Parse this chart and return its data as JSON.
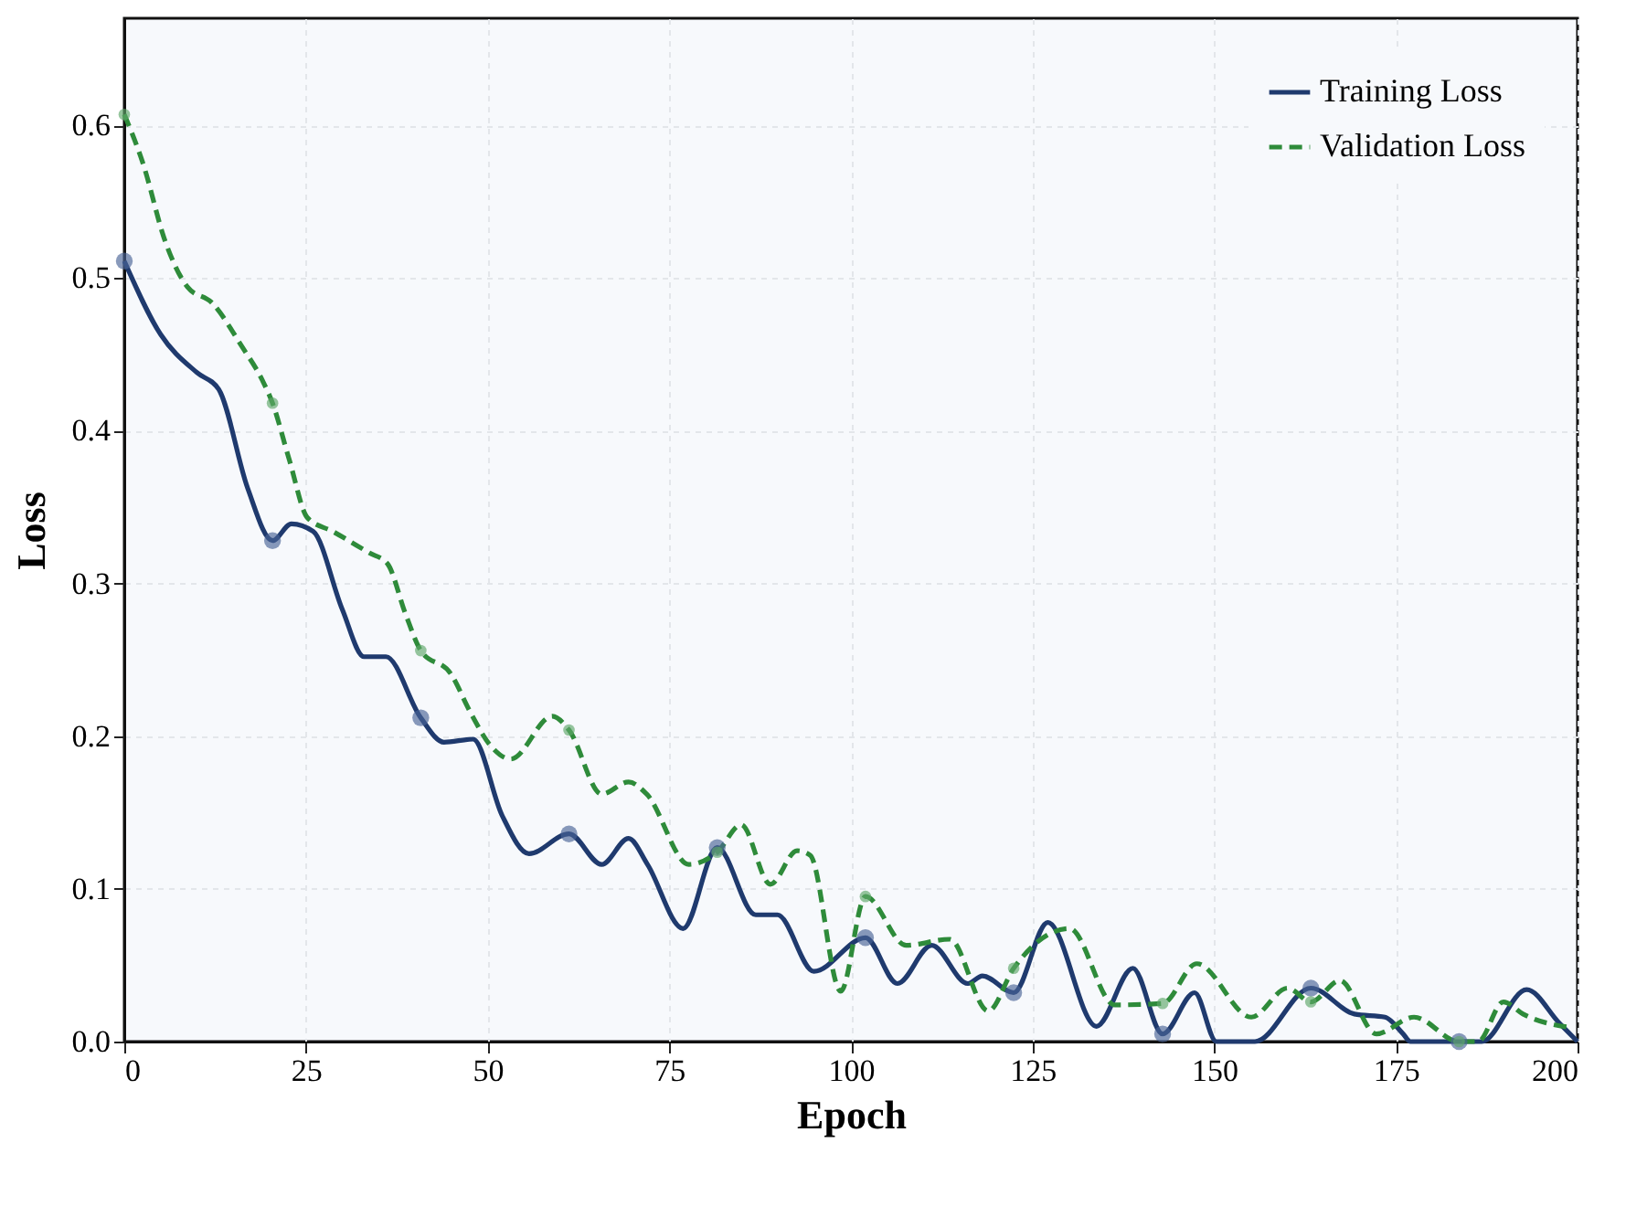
{
  "chart_data": {
    "type": "line",
    "xlabel": "Epoch",
    "ylabel": "Loss",
    "xlim": [
      0,
      200
    ],
    "ylim": [
      0,
      0.67
    ],
    "xticks": [
      0,
      25,
      50,
      75,
      100,
      125,
      150,
      175,
      200
    ],
    "yticks": [
      {
        "value": 0,
        "label": "0.0"
      },
      0.1,
      0.2,
      0.3,
      0.4,
      0.5,
      0.6
    ],
    "grid": true,
    "legend": "top right",
    "series": [
      {
        "name": "Training Loss",
        "color": "#1f3a6e",
        "line_style": "solid",
        "x": [
          0,
          5,
          10,
          13,
          17,
          20.4,
          23,
          26,
          30,
          33,
          36,
          40.8,
          44,
          48,
          52,
          55.7,
          61.2,
          65.7,
          69.4,
          72,
          76.9,
          81.6,
          86.9,
          89.9,
          94.9,
          102,
          106.4,
          111.1,
          116.1,
          118.1,
          122.4,
          127.1,
          133.8,
          138.8,
          142.9,
          147.3,
          150.3,
          155.6,
          163.3,
          169.3,
          173.5,
          176,
          177,
          183.7,
          186.8,
          193,
          197.5,
          200
        ],
        "values": [
          0.511,
          0.463,
          0.438,
          0.427,
          0.362,
          0.328,
          0.339,
          0.334,
          0.283,
          0.252,
          0.252,
          0.212,
          0.196,
          0.198,
          0.148,
          0.123,
          0.136,
          0.116,
          0.133,
          0.116,
          0.074,
          0.127,
          0.083,
          0.083,
          0.046,
          0.068,
          0.038,
          0.063,
          0.038,
          0.043,
          0.032,
          0.078,
          0.01,
          0.048,
          0.005,
          0.032,
          0.0,
          0.0,
          0.035,
          0.018,
          0.016,
          0.005,
          0.0,
          0.0,
          0.0,
          0.034,
          0.012,
          0.0
        ]
      },
      {
        "name": "Validation Loss",
        "color": "#2e8b3a",
        "line_style": "dashed",
        "x": [
          0,
          2.5,
          5.7,
          8.7,
          12,
          16.2,
          19,
          20.4,
          22.7,
          25.2,
          28.7,
          33.7,
          36.2,
          38.7,
          40.8,
          44.9,
          47.7,
          50.2,
          53.2,
          58.9,
          61.2,
          65.7,
          69.4,
          71.9,
          77.7,
          81.6,
          84.9,
          88.9,
          92.6,
          94.4,
          98.6,
          102,
          107.6,
          113.6,
          118.9,
          122.4,
          130.1,
          136.3,
          142.9,
          147.6,
          155.1,
          160.1,
          163.3,
          167.3,
          172.3,
          177.5,
          183.7,
          186.3,
          189.8,
          192.5,
          199.3
        ],
        "values": [
          0.607,
          0.576,
          0.523,
          0.494,
          0.484,
          0.455,
          0.433,
          0.418,
          0.381,
          0.343,
          0.334,
          0.32,
          0.313,
          0.28,
          0.256,
          0.241,
          0.215,
          0.195,
          0.185,
          0.213,
          0.204,
          0.162,
          0.17,
          0.162,
          0.116,
          0.124,
          0.142,
          0.103,
          0.125,
          0.122,
          0.033,
          0.095,
          0.063,
          0.067,
          0.02,
          0.048,
          0.074,
          0.024,
          0.025,
          0.051,
          0.016,
          0.035,
          0.026,
          0.04,
          0.005,
          0.016,
          0.0,
          0.0,
          0.026,
          0.018,
          0.009
        ]
      },
      {
        "type": "scatter",
        "marker": "circle",
        "color": "#4a6496",
        "x": [
          0,
          20.4,
          40.8,
          61.2,
          81.6,
          102,
          122.4,
          142.9,
          163.3,
          183.7
        ],
        "values": [
          0.511,
          0.328,
          0.212,
          0.136,
          0.127,
          0.068,
          0.032,
          0.005,
          0.035,
          0.0
        ]
      },
      {
        "type": "scatter",
        "marker": "circle",
        "color": "#5fa86a",
        "x": [
          0,
          20.4,
          40.8,
          61.2,
          81.6,
          102,
          122.4,
          142.9,
          163.3,
          183.7
        ],
        "values": [
          0.607,
          0.418,
          0.256,
          0.204,
          0.124,
          0.095,
          0.048,
          0.025,
          0.026,
          0.0
        ]
      }
    ]
  }
}
